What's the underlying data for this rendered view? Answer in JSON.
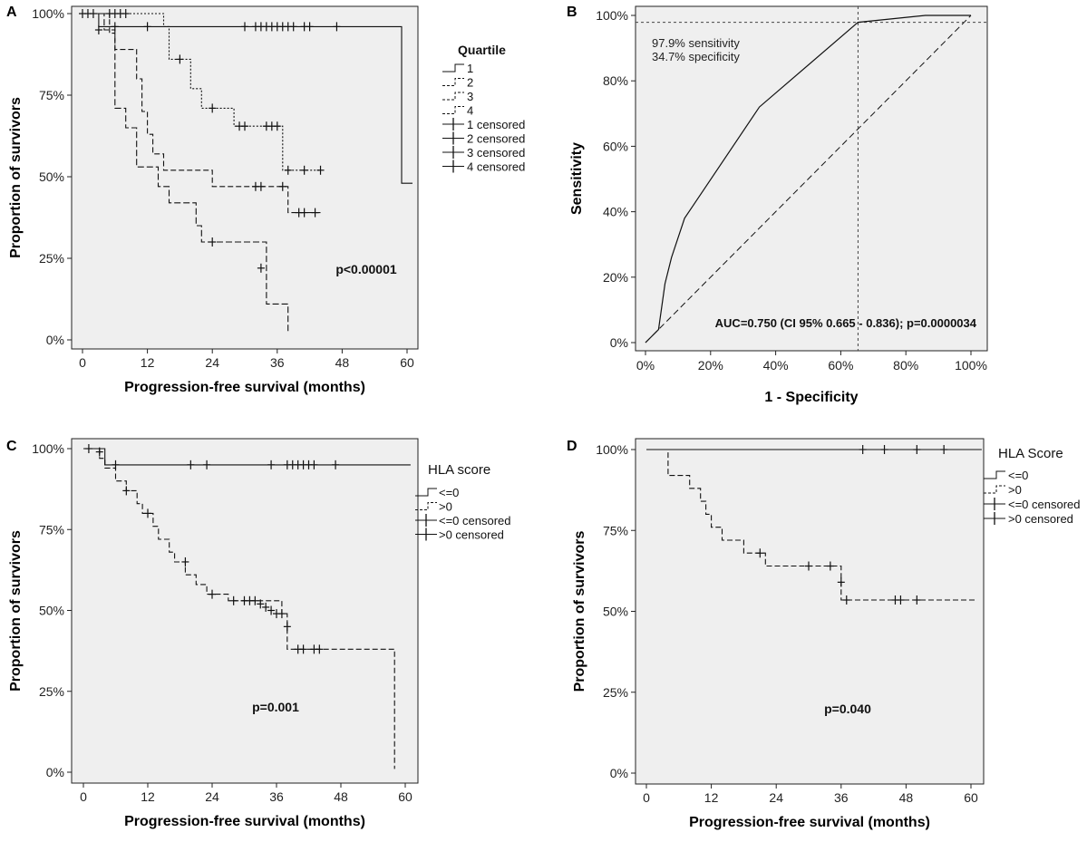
{
  "chart_data": [
    {
      "panel": "A",
      "type": "line",
      "subtype": "kaplan-meier",
      "xlabel": "Progression-free survival (months)",
      "ylabel": "Proportion of survivors",
      "xlim": [
        0,
        60
      ],
      "ylim": [
        0,
        1
      ],
      "xticks": [
        "0",
        "12",
        "24",
        "36",
        "48",
        "60"
      ],
      "yticks": [
        "0%",
        "25%",
        "50%",
        "75%",
        "100%"
      ],
      "legend_title": "Quartile",
      "legend": [
        "1",
        "2",
        "3",
        "4",
        "1 censored",
        "2 censored",
        "3 censored",
        "4 censored"
      ],
      "annotation": "p<0.00001",
      "series": [
        {
          "name": "1",
          "dash": "solid",
          "steps": [
            [
              0,
              1
            ],
            [
              3,
              1
            ],
            [
              3,
              0.96
            ],
            [
              59,
              0.96
            ],
            [
              59,
              0.48
            ],
            [
              61,
              0.48
            ]
          ],
          "censored": [
            [
              6,
              0.96
            ],
            [
              12,
              0.96
            ],
            [
              30,
              0.96
            ],
            [
              32,
              0.96
            ],
            [
              33,
              0.96
            ],
            [
              34,
              0.96
            ],
            [
              35,
              0.96
            ],
            [
              36,
              0.96
            ],
            [
              37,
              0.96
            ],
            [
              38,
              0.96
            ],
            [
              39,
              0.96
            ],
            [
              41,
              0.96
            ],
            [
              42,
              0.96
            ],
            [
              47,
              0.96
            ]
          ]
        },
        {
          "name": "2",
          "dash": "dotted",
          "steps": [
            [
              0,
              1
            ],
            [
              15,
              1
            ],
            [
              15,
              0.96
            ],
            [
              16,
              0.96
            ],
            [
              16,
              0.86
            ],
            [
              20,
              0.86
            ],
            [
              20,
              0.77
            ],
            [
              22,
              0.77
            ],
            [
              22,
              0.71
            ],
            [
              28,
              0.71
            ],
            [
              28,
              0.655
            ],
            [
              37,
              0.655
            ],
            [
              37,
              0.52
            ],
            [
              44,
              0.52
            ]
          ],
          "censored": [
            [
              2,
              1
            ],
            [
              5,
              1
            ],
            [
              6,
              1
            ],
            [
              7,
              1
            ],
            [
              8,
              1
            ],
            [
              18,
              0.86
            ],
            [
              24,
              0.71
            ],
            [
              29,
              0.655
            ],
            [
              30,
              0.655
            ],
            [
              34,
              0.655
            ],
            [
              35,
              0.655
            ],
            [
              36,
              0.655
            ],
            [
              38,
              0.52
            ],
            [
              41,
              0.52
            ],
            [
              44,
              0.52
            ]
          ]
        },
        {
          "name": "3",
          "dash": "dash",
          "steps": [
            [
              0,
              1
            ],
            [
              5,
              1
            ],
            [
              5,
              0.94
            ],
            [
              6,
              0.94
            ],
            [
              6,
              0.89
            ],
            [
              10,
              0.89
            ],
            [
              10,
              0.8
            ],
            [
              11,
              0.8
            ],
            [
              11,
              0.7
            ],
            [
              12,
              0.7
            ],
            [
              12,
              0.63
            ],
            [
              13,
              0.63
            ],
            [
              13,
              0.57
            ],
            [
              15,
              0.57
            ],
            [
              15,
              0.52
            ],
            [
              24,
              0.52
            ],
            [
              24,
              0.47
            ],
            [
              38,
              0.47
            ],
            [
              38,
              0.39
            ],
            [
              44,
              0.39
            ]
          ],
          "censored": [
            [
              0,
              1
            ],
            [
              1,
              1
            ],
            [
              32,
              0.47
            ],
            [
              33,
              0.47
            ],
            [
              37,
              0.47
            ],
            [
              40,
              0.39
            ],
            [
              41,
              0.39
            ],
            [
              43,
              0.39
            ]
          ]
        },
        {
          "name": "4",
          "dash": "longdash",
          "steps": [
            [
              0,
              1
            ],
            [
              4,
              1
            ],
            [
              4,
              0.95
            ],
            [
              6,
              0.95
            ],
            [
              6,
              0.71
            ],
            [
              8,
              0.71
            ],
            [
              8,
              0.65
            ],
            [
              10,
              0.65
            ],
            [
              10,
              0.53
            ],
            [
              14,
              0.53
            ],
            [
              14,
              0.47
            ],
            [
              16,
              0.47
            ],
            [
              16,
              0.42
            ],
            [
              21,
              0.42
            ],
            [
              21,
              0.35
            ],
            [
              22,
              0.35
            ],
            [
              22,
              0.3
            ],
            [
              34,
              0.3
            ],
            [
              34,
              0.11
            ],
            [
              38,
              0.11
            ],
            [
              38,
              0.02
            ]
          ],
          "censored": [
            [
              3,
              0.95
            ],
            [
              24,
              0.3
            ],
            [
              33,
              0.22
            ]
          ]
        }
      ]
    },
    {
      "panel": "B",
      "type": "line",
      "subtype": "roc",
      "xlabel": "1 - Specificity",
      "ylabel": "Sensitivity",
      "xlim": [
        0,
        1
      ],
      "ylim": [
        0,
        1
      ],
      "xticks": [
        "0%",
        "20%",
        "40%",
        "60%",
        "80%",
        "100%"
      ],
      "yticks": [
        "0%",
        "20%",
        "40%",
        "60%",
        "80%",
        "100%"
      ],
      "annotations": [
        "97.9% sensitivity",
        "34.7% specificity",
        "AUC=0.750 (CI 95% 0.665 - 0.836); p=0.0000034"
      ],
      "roc_curve": [
        [
          0,
          0
        ],
        [
          0.04,
          0.04
        ],
        [
          0.06,
          0.18
        ],
        [
          0.08,
          0.26
        ],
        [
          0.12,
          0.38
        ],
        [
          0.35,
          0.72
        ],
        [
          0.653,
          0.979
        ],
        [
          0.86,
          1.0
        ],
        [
          1.0,
          1.0
        ]
      ],
      "reference_line": [
        [
          0,
          0
        ],
        [
          1,
          1
        ]
      ],
      "cutoff_point": [
        0.653,
        0.979
      ]
    },
    {
      "panel": "C",
      "type": "line",
      "subtype": "kaplan-meier",
      "xlabel": "Progression-free survival (months)",
      "ylabel": "Proportion of survivors",
      "xlim": [
        0,
        60
      ],
      "ylim": [
        0,
        1
      ],
      "xticks": [
        "0",
        "12",
        "24",
        "36",
        "48",
        "60"
      ],
      "yticks": [
        "0%",
        "25%",
        "50%",
        "75%",
        "100%"
      ],
      "legend_title": "HLA score",
      "legend": [
        "<=0",
        ">0",
        "<=0 censored",
        ">0 censored"
      ],
      "annotation": "p=0.001",
      "series": [
        {
          "name": "<=0",
          "dash": "solid",
          "steps": [
            [
              0,
              1
            ],
            [
              4,
              1
            ],
            [
              4,
              0.95
            ],
            [
              61,
              0.95
            ]
          ],
          "censored": [
            [
              1,
              1
            ],
            [
              3,
              0.99
            ],
            [
              6,
              0.95
            ],
            [
              20,
              0.95
            ],
            [
              23,
              0.95
            ],
            [
              35,
              0.95
            ],
            [
              38,
              0.95
            ],
            [
              39,
              0.95
            ],
            [
              40,
              0.95
            ],
            [
              41,
              0.95
            ],
            [
              42,
              0.95
            ],
            [
              43,
              0.95
            ],
            [
              47,
              0.95
            ]
          ]
        },
        {
          "name": ">0",
          "dash": "dash",
          "steps": [
            [
              0,
              1
            ],
            [
              3,
              1
            ],
            [
              3,
              0.97
            ],
            [
              4,
              0.97
            ],
            [
              4,
              0.94
            ],
            [
              6,
              0.94
            ],
            [
              6,
              0.9
            ],
            [
              8,
              0.9
            ],
            [
              8,
              0.87
            ],
            [
              10,
              0.87
            ],
            [
              10,
              0.83
            ],
            [
              11,
              0.83
            ],
            [
              11,
              0.8
            ],
            [
              13,
              0.8
            ],
            [
              13,
              0.76
            ],
            [
              14,
              0.76
            ],
            [
              14,
              0.72
            ],
            [
              16,
              0.72
            ],
            [
              16,
              0.68
            ],
            [
              17,
              0.68
            ],
            [
              17,
              0.65
            ],
            [
              19,
              0.65
            ],
            [
              19,
              0.61
            ],
            [
              21,
              0.61
            ],
            [
              21,
              0.58
            ],
            [
              23,
              0.58
            ],
            [
              23,
              0.55
            ],
            [
              27,
              0.55
            ],
            [
              27,
              0.53
            ],
            [
              37,
              0.53
            ],
            [
              37,
              0.49
            ],
            [
              38,
              0.49
            ],
            [
              38,
              0.38
            ],
            [
              58,
              0.38
            ],
            [
              58,
              0.01
            ]
          ],
          "censored": [
            [
              8,
              0.87
            ],
            [
              12,
              0.8
            ],
            [
              19,
              0.65
            ],
            [
              24,
              0.55
            ],
            [
              28,
              0.53
            ],
            [
              30,
              0.53
            ],
            [
              31,
              0.53
            ],
            [
              32,
              0.53
            ],
            [
              33,
              0.52
            ],
            [
              34,
              0.51
            ],
            [
              35,
              0.5
            ],
            [
              36,
              0.49
            ],
            [
              37,
              0.49
            ],
            [
              38,
              0.45
            ],
            [
              40,
              0.38
            ],
            [
              41,
              0.38
            ],
            [
              43,
              0.38
            ],
            [
              44,
              0.38
            ]
          ]
        }
      ]
    },
    {
      "panel": "D",
      "type": "line",
      "subtype": "kaplan-meier",
      "xlabel": "Progression-free survival (months)",
      "ylabel": "Proportion of survivors",
      "xlim": [
        0,
        60
      ],
      "ylim": [
        0,
        1
      ],
      "xticks": [
        "0",
        "12",
        "24",
        "36",
        "48",
        "60"
      ],
      "yticks": [
        "0%",
        "25%",
        "50%",
        "75%",
        "100%"
      ],
      "legend_title": "HLA Score",
      "legend": [
        "<=0",
        ">0",
        "<=0 censored",
        ">0 censored"
      ],
      "annotation": "p=0.040",
      "series": [
        {
          "name": "<=0",
          "dash": "solid",
          "steps": [
            [
              0,
              1
            ],
            [
              62,
              1
            ]
          ],
          "censored": [
            [
              40,
              1
            ],
            [
              44,
              1
            ],
            [
              50,
              1
            ],
            [
              55,
              1
            ]
          ]
        },
        {
          "name": ">0",
          "dash": "dash",
          "steps": [
            [
              0,
              1
            ],
            [
              4,
              1
            ],
            [
              4,
              0.92
            ],
            [
              8,
              0.92
            ],
            [
              8,
              0.88
            ],
            [
              10,
              0.88
            ],
            [
              10,
              0.84
            ],
            [
              11,
              0.84
            ],
            [
              11,
              0.8
            ],
            [
              12,
              0.8
            ],
            [
              12,
              0.76
            ],
            [
              14,
              0.76
            ],
            [
              14,
              0.72
            ],
            [
              18,
              0.72
            ],
            [
              18,
              0.68
            ],
            [
              22,
              0.68
            ],
            [
              22,
              0.64
            ],
            [
              36,
              0.64
            ],
            [
              36,
              0.535
            ],
            [
              61,
              0.535
            ]
          ],
          "censored": [
            [
              21,
              0.68
            ],
            [
              30,
              0.64
            ],
            [
              34,
              0.64
            ],
            [
              36,
              0.59
            ],
            [
              37,
              0.535
            ],
            [
              46,
              0.535
            ],
            [
              47,
              0.535
            ],
            [
              50,
              0.535
            ]
          ]
        }
      ]
    }
  ]
}
